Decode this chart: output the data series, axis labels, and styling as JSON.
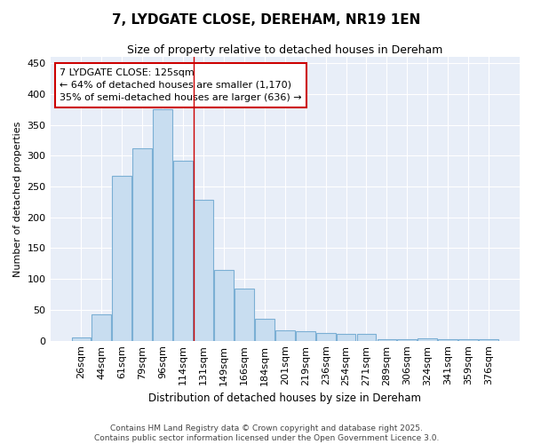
{
  "title": "7, LYDGATE CLOSE, DEREHAM, NR19 1EN",
  "subtitle": "Size of property relative to detached houses in Dereham",
  "xlabel": "Distribution of detached houses by size in Dereham",
  "ylabel": "Number of detached properties",
  "categories": [
    "26sqm",
    "44sqm",
    "61sqm",
    "79sqm",
    "96sqm",
    "114sqm",
    "131sqm",
    "149sqm",
    "166sqm",
    "184sqm",
    "201sqm",
    "219sqm",
    "236sqm",
    "254sqm",
    "271sqm",
    "289sqm",
    "306sqm",
    "324sqm",
    "341sqm",
    "359sqm",
    "376sqm"
  ],
  "values": [
    6,
    43,
    268,
    312,
    375,
    292,
    228,
    115,
    85,
    35,
    17,
    16,
    13,
    11,
    11,
    3,
    2,
    4,
    3,
    2,
    2
  ],
  "bar_color": "#c8ddf0",
  "bar_edge_color": "#7bafd4",
  "vline_color": "#cc0000",
  "vline_x_index": 5,
  "annotation_text": "7 LYDGATE CLOSE: 125sqm\n← 64% of detached houses are smaller (1,170)\n35% of semi-detached houses are larger (636) →",
  "annotation_box_color": "#ffffff",
  "annotation_box_edge": "#cc0000",
  "ylim": [
    0,
    460
  ],
  "yticks": [
    0,
    50,
    100,
    150,
    200,
    250,
    300,
    350,
    400,
    450
  ],
  "fig_bg_color": "#ffffff",
  "plot_bg_color": "#e8eef8",
  "grid_color": "#ffffff",
  "footer_line1": "Contains HM Land Registry data © Crown copyright and database right 2025.",
  "footer_line2": "Contains public sector information licensed under the Open Government Licence 3.0."
}
